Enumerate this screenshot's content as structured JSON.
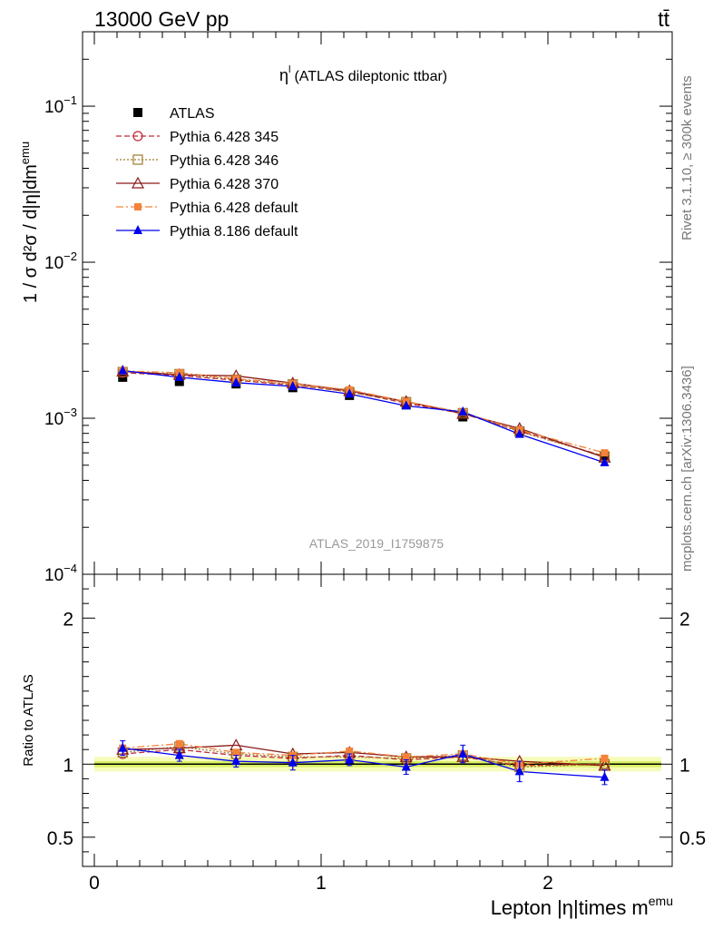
{
  "header": {
    "left": "13000 GeV pp",
    "right": "tt̄"
  },
  "side_labels": {
    "rivet": "Rivet 3.1.10, ≥ 300k events",
    "mcplots": "mcplots.cern.ch [arXiv:1306.3436]"
  },
  "watermark": "ATLAS_2019_I1759875",
  "colors": {
    "atlas": "#000000",
    "p345": "#c0283a",
    "p346": "#a07a2c",
    "p370": "#8b1a1a",
    "p6def": "#f4823a",
    "p8def": "#0000ee",
    "band_inner": "#d8f060",
    "band_outer": "#f6fbb8"
  },
  "chart_data": [
    {
      "type": "line",
      "title": "η",
      "title_sup": "l",
      "title_suffix": "(ATLAS dileptonic ttbar)",
      "ylabel": "1 / σ  d²σ / d|η|dm",
      "ylabel_sup": "emu",
      "yscale": "log",
      "ylim": [
        0.0001,
        0.3
      ],
      "xlim": [
        -0.1,
        2.55
      ],
      "yticks": [
        {
          "value": 0.1,
          "base": "10",
          "exp": "−1"
        },
        {
          "value": 0.01,
          "base": "10",
          "exp": "−2"
        },
        {
          "value": 0.001,
          "base": "10",
          "exp": "−3"
        },
        {
          "value": 0.0001,
          "base": "10",
          "exp": "−4"
        }
      ],
      "legend_position": "top-left",
      "x": [
        0.125,
        0.375,
        0.625,
        0.875,
        1.125,
        1.375,
        1.625,
        1.875,
        2.25
      ],
      "series": [
        {
          "name": "ATLAS",
          "key": "atlas",
          "marker": "square-filled",
          "dash": "none",
          "line": false,
          "values": [
            0.00183,
            0.00172,
            0.00166,
            0.00157,
            0.0014,
            0.00122,
            0.00102,
            0.00083,
            0.00057
          ]
        },
        {
          "name": "Pythia 6.428 345",
          "key": "p345",
          "marker": "circle-open",
          "dash": "6,3",
          "values": [
            0.00196,
            0.00188,
            0.00175,
            0.00163,
            0.00148,
            0.00125,
            0.00107,
            0.00083,
            0.00057
          ]
        },
        {
          "name": "Pythia 6.428 346",
          "key": "p346",
          "marker": "square-open",
          "dash": "2,2",
          "values": [
            0.00198,
            0.00192,
            0.00177,
            0.00165,
            0.00147,
            0.00127,
            0.00108,
            0.00082,
            0.00057
          ]
        },
        {
          "name": "Pythia 6.428 370",
          "key": "p370",
          "marker": "triangle-open",
          "dash": "none",
          "values": [
            0.002,
            0.0019,
            0.00187,
            0.00168,
            0.0015,
            0.00128,
            0.00107,
            0.00086,
            0.00056
          ]
        },
        {
          "name": "Pythia 6.428 default",
          "key": "p6def",
          "marker": "square-small",
          "dash": "8,3,2,3",
          "values": [
            0.00201,
            0.00196,
            0.00179,
            0.00167,
            0.00152,
            0.00128,
            0.00109,
            0.00084,
            0.0006
          ]
        },
        {
          "name": "Pythia 8.186 default",
          "key": "p8def",
          "marker": "triangle-filled",
          "dash": "none",
          "values": [
            0.00202,
            0.00183,
            0.00169,
            0.0016,
            0.00143,
            0.0012,
            0.0011,
            0.00079,
            0.00052
          ]
        }
      ]
    },
    {
      "type": "line",
      "ylabel": "Ratio to ATLAS",
      "xlabel": "Lepton |η|times m",
      "xlabel_sup": "emu",
      "ylim": [
        0.3,
        2.3
      ],
      "xlim": [
        -0.1,
        2.55
      ],
      "yticks": [
        0.5,
        1,
        2
      ],
      "yticklabels": [
        "0.5",
        "1",
        "2"
      ],
      "xticks": [
        0,
        1,
        2
      ],
      "xticklabels": [
        "0",
        "1",
        "2"
      ],
      "band": {
        "center": 1.0,
        "inner": 0.02,
        "outer": 0.05
      },
      "x": [
        0.125,
        0.375,
        0.625,
        0.875,
        1.125,
        1.375,
        1.625,
        1.875,
        2.25
      ],
      "series": [
        {
          "key": "p345",
          "values": [
            1.07,
            1.1,
            1.06,
            1.04,
            1.06,
            1.03,
            1.05,
            0.99,
            1.0
          ]
        },
        {
          "key": "p346",
          "values": [
            1.08,
            1.12,
            1.07,
            1.05,
            1.05,
            1.04,
            1.06,
            0.98,
            1.0
          ]
        },
        {
          "key": "p370",
          "values": [
            1.1,
            1.11,
            1.13,
            1.07,
            1.08,
            1.05,
            1.05,
            1.02,
            0.99
          ]
        },
        {
          "key": "p6def",
          "values": [
            1.11,
            1.14,
            1.08,
            1.06,
            1.09,
            1.05,
            1.07,
            1.0,
            1.04
          ]
        },
        {
          "key": "p8def",
          "values": [
            1.11,
            1.06,
            1.02,
            1.01,
            1.03,
            0.98,
            1.07,
            0.95,
            0.91
          ],
          "errors": [
            0.05,
            0.04,
            0.04,
            0.05,
            0.04,
            0.05,
            0.06,
            0.07,
            0.05
          ]
        }
      ]
    }
  ]
}
